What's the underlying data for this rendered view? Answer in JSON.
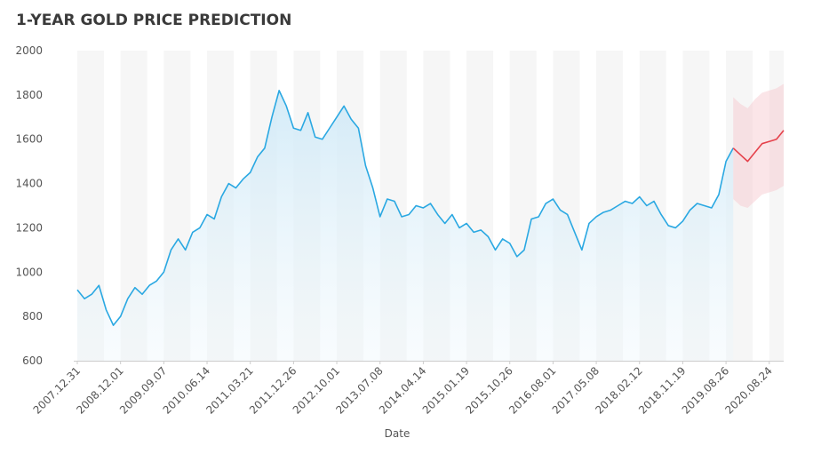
{
  "chart_data": {
    "type": "line",
    "title": "1-YEAR GOLD PRICE PREDICTION",
    "x_label": "Date",
    "categories": [
      "2007.12.31",
      null,
      null,
      null,
      null,
      null,
      "2008.12.01",
      null,
      null,
      null,
      null,
      null,
      "2009.09.07",
      null,
      null,
      null,
      null,
      null,
      "2010.06.14",
      null,
      null,
      null,
      null,
      null,
      "2011.03.21",
      null,
      null,
      null,
      null,
      null,
      "2011.12.26",
      null,
      null,
      null,
      null,
      null,
      "2012.10.01",
      null,
      null,
      null,
      null,
      null,
      "2013.07.08",
      null,
      null,
      null,
      null,
      null,
      "2014.04.14",
      null,
      null,
      null,
      null,
      null,
      "2015.01.19",
      null,
      null,
      null,
      null,
      null,
      "2015.10.26",
      null,
      null,
      null,
      null,
      null,
      "2016.08.01",
      null,
      null,
      null,
      null,
      null,
      "2017.05.08",
      null,
      null,
      null,
      null,
      null,
      "2018.02.12",
      null,
      null,
      null,
      null,
      null,
      "2018.11.19",
      null,
      null,
      null,
      null,
      null,
      "2019.08.26",
      null,
      null,
      null,
      null,
      null,
      "2020.08.24",
      null,
      null
    ],
    "series": [
      {
        "color": "#2aa8e2",
        "values": [
          920,
          880,
          900,
          940,
          830,
          760,
          800,
          880,
          930,
          900,
          940,
          960,
          1000,
          1100,
          1150,
          1100,
          1180,
          1200,
          1260,
          1240,
          1340,
          1400,
          1380,
          1420,
          1450,
          1520,
          1560,
          1700,
          1820,
          1750,
          1650,
          1640,
          1720,
          1610,
          1600,
          1650,
          1700,
          1750,
          1690,
          1650,
          1480,
          1380,
          1250,
          1330,
          1320,
          1250,
          1260,
          1300,
          1290,
          1310,
          1260,
          1220,
          1260,
          1200,
          1220,
          1180,
          1190,
          1160,
          1100,
          1150,
          1130,
          1070,
          1100,
          1240,
          1250,
          1310,
          1330,
          1280,
          1260,
          1180,
          1100,
          1220,
          1250,
          1270,
          1280,
          1300,
          1320,
          1310,
          1340,
          1300,
          1320,
          1260,
          1210,
          1200,
          1230,
          1280,
          1310,
          1300,
          1290,
          1350,
          1500,
          1560,
          null,
          null,
          null,
          null,
          null,
          null,
          null
        ]
      },
      {
        "color": "#e5414b",
        "band_color": "#f7c6cb",
        "values": [
          null,
          null,
          null,
          null,
          null,
          null,
          null,
          null,
          null,
          null,
          null,
          null,
          null,
          null,
          null,
          null,
          null,
          null,
          null,
          null,
          null,
          null,
          null,
          null,
          null,
          null,
          null,
          null,
          null,
          null,
          null,
          null,
          null,
          null,
          null,
          null,
          null,
          null,
          null,
          null,
          null,
          null,
          null,
          null,
          null,
          null,
          null,
          null,
          null,
          null,
          null,
          null,
          null,
          null,
          null,
          null,
          null,
          null,
          null,
          null,
          null,
          null,
          null,
          null,
          null,
          null,
          null,
          null,
          null,
          null,
          null,
          null,
          null,
          null,
          null,
          null,
          null,
          null,
          null,
          null,
          null,
          null,
          null,
          null,
          null,
          null,
          null,
          null,
          null,
          null,
          null,
          1560,
          1530,
          1500,
          1540,
          1580,
          1590,
          1600,
          1640
        ],
        "upper": [
          null,
          null,
          null,
          null,
          null,
          null,
          null,
          null,
          null,
          null,
          null,
          null,
          null,
          null,
          null,
          null,
          null,
          null,
          null,
          null,
          null,
          null,
          null,
          null,
          null,
          null,
          null,
          null,
          null,
          null,
          null,
          null,
          null,
          null,
          null,
          null,
          null,
          null,
          null,
          null,
          null,
          null,
          null,
          null,
          null,
          null,
          null,
          null,
          null,
          null,
          null,
          null,
          null,
          null,
          null,
          null,
          null,
          null,
          null,
          null,
          null,
          null,
          null,
          null,
          null,
          null,
          null,
          null,
          null,
          null,
          null,
          null,
          null,
          null,
          null,
          null,
          null,
          null,
          null,
          null,
          null,
          null,
          null,
          null,
          null,
          null,
          null,
          null,
          null,
          null,
          null,
          1790,
          1760,
          1740,
          1780,
          1810,
          1820,
          1830,
          1850
        ],
        "lower": [
          null,
          null,
          null,
          null,
          null,
          null,
          null,
          null,
          null,
          null,
          null,
          null,
          null,
          null,
          null,
          null,
          null,
          null,
          null,
          null,
          null,
          null,
          null,
          null,
          null,
          null,
          null,
          null,
          null,
          null,
          null,
          null,
          null,
          null,
          null,
          null,
          null,
          null,
          null,
          null,
          null,
          null,
          null,
          null,
          null,
          null,
          null,
          null,
          null,
          null,
          null,
          null,
          null,
          null,
          null,
          null,
          null,
          null,
          null,
          null,
          null,
          null,
          null,
          null,
          null,
          null,
          null,
          null,
          null,
          null,
          null,
          null,
          null,
          null,
          null,
          null,
          null,
          null,
          null,
          null,
          null,
          null,
          null,
          null,
          null,
          null,
          null,
          null,
          null,
          null,
          null,
          1330,
          1300,
          1290,
          1320,
          1350,
          1360,
          1370,
          1390
        ]
      }
    ],
    "ylim": [
      600,
      2000
    ],
    "yticks": [
      600,
      800,
      1000,
      1200,
      1400,
      1600,
      1800,
      2000
    ],
    "grid": false
  }
}
